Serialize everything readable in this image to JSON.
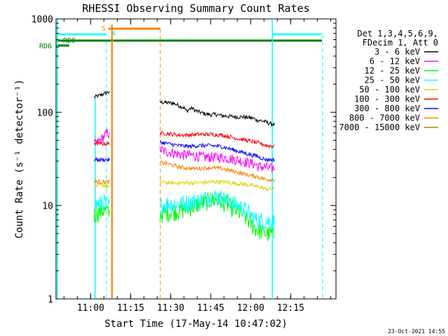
{
  "chart_data": {
    "type": "line",
    "title": "RHESSI Observing Summary Count Rates",
    "xlabel": "Start Time (17-May-14 10:47:02)",
    "ylabel": "Count Rate (s⁻¹ detector⁻¹)",
    "yscale": "log",
    "ylim": [
      1,
      1000
    ],
    "xlim_minutes": [
      0,
      105
    ],
    "y_ticks": [
      {
        "value": 1,
        "label": "1"
      },
      {
        "value": 10,
        "label": "10"
      },
      {
        "value": 100,
        "label": "100"
      },
      {
        "value": 1000,
        "label": "1000"
      }
    ],
    "x_ticks": [
      {
        "minute": 13,
        "label": "11:00"
      },
      {
        "minute": 28,
        "label": "11:15"
      },
      {
        "minute": 43,
        "label": "11:30"
      },
      {
        "minute": 58,
        "label": "11:45"
      },
      {
        "minute": 73,
        "label": "12:00"
      },
      {
        "minute": 88,
        "label": "12:15"
      }
    ],
    "legend": {
      "position": "top-right",
      "header": [
        "Det 1,3,4,5,6,9,",
        "FDecim 1, Att 0"
      ]
    },
    "segments": [
      [
        14.3,
        20.2
      ],
      [
        39.0,
        82.0
      ]
    ],
    "series": [
      {
        "name": "3 - 6 keV",
        "color": "#000000",
        "points": [
          [
            14.3,
            145
          ],
          [
            16,
            150
          ],
          [
            18,
            158
          ],
          [
            19.5,
            165
          ],
          [
            20.2,
            160
          ],
          [
            39,
            128
          ],
          [
            41,
            127
          ],
          [
            44,
            125
          ],
          [
            46,
            118
          ],
          [
            48,
            112
          ],
          [
            49,
            102
          ],
          [
            50,
            108
          ],
          [
            51,
            111
          ],
          [
            52,
            105
          ],
          [
            54,
            100
          ],
          [
            56,
            96
          ],
          [
            58,
            94
          ],
          [
            60,
            95
          ],
          [
            62,
            92
          ],
          [
            64,
            91
          ],
          [
            66,
            90
          ],
          [
            68,
            89
          ],
          [
            70,
            89
          ],
          [
            72,
            88
          ],
          [
            74,
            86
          ],
          [
            75.5,
            82
          ],
          [
            76,
            82
          ],
          [
            78,
            80
          ],
          [
            80,
            76
          ],
          [
            82,
            74
          ]
        ]
      },
      {
        "name": "6 - 12 keV",
        "color": "#ff00ff",
        "points": [
          [
            14.3,
            45
          ],
          [
            16,
            48
          ],
          [
            18,
            55
          ],
          [
            19.5,
            62
          ],
          [
            20.2,
            52
          ],
          [
            39,
            40
          ],
          [
            41,
            38
          ],
          [
            44,
            37
          ],
          [
            47,
            35
          ],
          [
            50,
            35
          ],
          [
            53,
            34
          ],
          [
            56,
            33
          ],
          [
            59,
            33
          ],
          [
            62,
            33
          ],
          [
            65,
            32
          ],
          [
            68,
            31
          ],
          [
            70,
            30
          ],
          [
            72,
            29
          ],
          [
            74,
            28
          ],
          [
            75.5,
            27
          ],
          [
            76,
            26
          ],
          [
            78,
            26
          ],
          [
            80,
            25
          ],
          [
            82,
            25
          ]
        ]
      },
      {
        "name": "12 - 25 keV",
        "color": "#00ff00",
        "points": [
          [
            14.3,
            8
          ],
          [
            16,
            8.5
          ],
          [
            18,
            9
          ],
          [
            19.5,
            8.5
          ],
          [
            20.2,
            8
          ],
          [
            39,
            8
          ],
          [
            42,
            8.5
          ],
          [
            46,
            8.8
          ],
          [
            50,
            9.5
          ],
          [
            54,
            10.5
          ],
          [
            58,
            11.5
          ],
          [
            61,
            11.5
          ],
          [
            64,
            10.5
          ],
          [
            67,
            9
          ],
          [
            70,
            8
          ],
          [
            72,
            7
          ],
          [
            74,
            6
          ],
          [
            75.5,
            5.5
          ],
          [
            76,
            5.5
          ],
          [
            79,
            5
          ],
          [
            82,
            5
          ]
        ]
      },
      {
        "name": "25 - 50 keV",
        "color": "#00ffff",
        "points": [
          [
            14.3,
            10
          ],
          [
            16,
            10.5
          ],
          [
            18,
            11
          ],
          [
            19.5,
            10
          ],
          [
            20.2,
            10
          ],
          [
            39,
            10
          ],
          [
            42,
            10.5
          ],
          [
            46,
            10.5
          ],
          [
            50,
            11
          ],
          [
            54,
            11.5
          ],
          [
            58,
            12.5
          ],
          [
            61,
            12.5
          ],
          [
            64,
            11.5
          ],
          [
            67,
            10.5
          ],
          [
            70,
            9.5
          ],
          [
            72,
            8.5
          ],
          [
            74,
            7.5
          ],
          [
            75.5,
            7
          ],
          [
            76,
            7
          ],
          [
            79,
            6.8
          ],
          [
            82,
            6.8
          ]
        ]
      },
      {
        "name": "50 - 100 keV",
        "color": "#e0d000",
        "points": [
          [
            14.3,
            16
          ],
          [
            16,
            16.5
          ],
          [
            18,
            16.5
          ],
          [
            19.5,
            16
          ],
          [
            20.2,
            16
          ],
          [
            39,
            18
          ],
          [
            42,
            17.5
          ],
          [
            46,
            17.5
          ],
          [
            50,
            17.5
          ],
          [
            54,
            17.5
          ],
          [
            58,
            18
          ],
          [
            62,
            18
          ],
          [
            66,
            17.5
          ],
          [
            70,
            17
          ],
          [
            73,
            16.5
          ],
          [
            75.5,
            16
          ],
          [
            76,
            16
          ],
          [
            79,
            15
          ],
          [
            82,
            15
          ]
        ]
      },
      {
        "name": "100 - 300 keV",
        "color": "#ff0000",
        "points": [
          [
            14.3,
            47
          ],
          [
            16,
            46
          ],
          [
            18,
            46
          ],
          [
            19.5,
            46
          ],
          [
            20.2,
            45
          ],
          [
            39,
            60
          ],
          [
            42,
            59
          ],
          [
            46,
            57
          ],
          [
            50,
            57
          ],
          [
            54,
            58
          ],
          [
            58,
            58
          ],
          [
            62,
            57
          ],
          [
            66,
            54
          ],
          [
            70,
            51
          ],
          [
            73,
            49
          ],
          [
            75.5,
            47
          ],
          [
            76,
            47
          ],
          [
            79,
            44
          ],
          [
            82,
            43
          ]
        ]
      },
      {
        "name": "300 - 800 keV",
        "color": "#0000ff",
        "points": [
          [
            14.3,
            31
          ],
          [
            16,
            31
          ],
          [
            18,
            31
          ],
          [
            19.5,
            31
          ],
          [
            20.2,
            31
          ],
          [
            39,
            48
          ],
          [
            42,
            46
          ],
          [
            46,
            44
          ],
          [
            50,
            43
          ],
          [
            54,
            44
          ],
          [
            58,
            44
          ],
          [
            62,
            43
          ],
          [
            66,
            40
          ],
          [
            70,
            37
          ],
          [
            73,
            35
          ],
          [
            75.5,
            34
          ],
          [
            76,
            33
          ],
          [
            79,
            31
          ],
          [
            82,
            31
          ]
        ]
      },
      {
        "name": "800 - 7000 keV",
        "color": "#ff8000",
        "points": [
          [
            14.3,
            18
          ],
          [
            16,
            18
          ],
          [
            18,
            18
          ],
          [
            19.5,
            18
          ],
          [
            20.2,
            18
          ],
          [
            39,
            29
          ],
          [
            42,
            28
          ],
          [
            46,
            26
          ],
          [
            50,
            25
          ],
          [
            54,
            25
          ],
          [
            58,
            25.5
          ],
          [
            62,
            25
          ],
          [
            66,
            23.5
          ],
          [
            70,
            22
          ],
          [
            73,
            21
          ],
          [
            75.5,
            20.5
          ],
          [
            76,
            20
          ],
          [
            79,
            19
          ],
          [
            82,
            19
          ]
        ]
      },
      {
        "name": "7000 - 15000 keV",
        "color": "#b08000",
        "points": []
      }
    ],
    "markers": [
      {
        "label": "S",
        "color": "#ff8000"
      },
      {
        "label": "N",
        "color": "#00ffff"
      },
      {
        "label": "RD0",
        "color": "#008000"
      },
      {
        "label": "RD6",
        "color": "#008000"
      }
    ],
    "footer_date": "23-Oct-2021 14:55"
  }
}
